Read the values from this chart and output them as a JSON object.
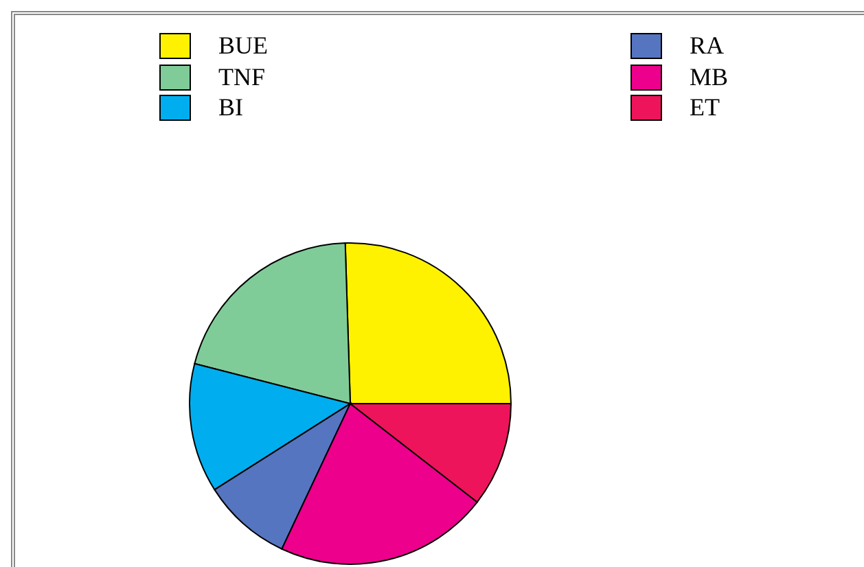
{
  "chart_data": {
    "type": "pie",
    "categories": [
      "BUE",
      "TNF",
      "BI",
      "RA",
      "MB",
      "ET"
    ],
    "values": [
      25.5,
      20.5,
      13,
      9,
      21.5,
      10.5
    ],
    "colors": [
      "#fff200",
      "#80cc99",
      "#00aeef",
      "#5575c0",
      "#ec008c",
      "#ed145b"
    ],
    "legend": "top"
  }
}
